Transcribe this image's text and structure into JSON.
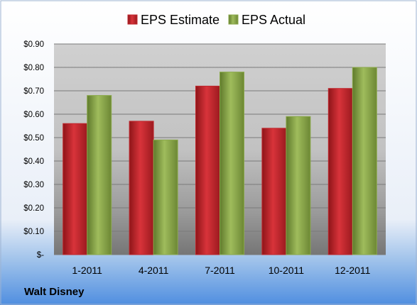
{
  "company": "Walt Disney",
  "colors": {
    "estimate": "#c0272d",
    "actual": "#8aa84a"
  },
  "chart_data": {
    "type": "bar",
    "categories": [
      "1-2011",
      "4-2011",
      "7-2011",
      "10-2011",
      "12-2011"
    ],
    "series": [
      {
        "name": "EPS Estimate",
        "values": [
          0.56,
          0.57,
          0.72,
          0.54,
          0.71
        ]
      },
      {
        "name": "EPS Actual",
        "values": [
          0.68,
          0.49,
          0.78,
          0.59,
          0.8
        ]
      }
    ],
    "ylim": [
      0,
      0.9
    ],
    "yticks": [
      0,
      0.1,
      0.2,
      0.3,
      0.4,
      0.5,
      0.6,
      0.7,
      0.8,
      0.9
    ],
    "ytick_labels": [
      "$-",
      "$0.10",
      "$0.20",
      "$0.30",
      "$0.40",
      "$0.50",
      "$0.60",
      "$0.70",
      "$0.80",
      "$0.90"
    ],
    "grid": true,
    "legend_position": "top"
  }
}
